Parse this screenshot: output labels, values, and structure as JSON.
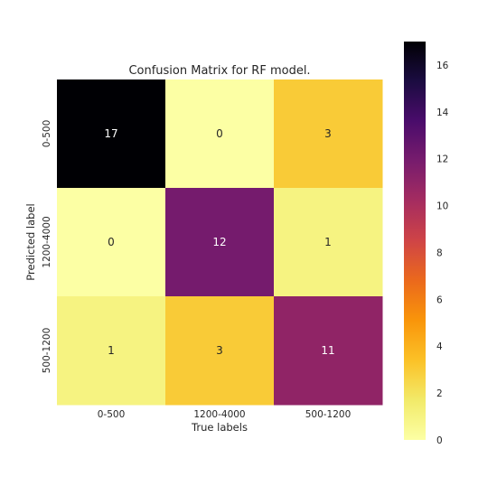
{
  "chart_data": {
    "type": "heatmap",
    "title": "Confusion Matrix for RF model.",
    "xlabel": "True labels",
    "ylabel": "Predicted label",
    "x_categories": [
      "0-500",
      "1200-4000",
      "500-1200"
    ],
    "y_categories": [
      "0-500",
      "1200-4000",
      "500-1200"
    ],
    "matrix": [
      [
        17,
        0,
        3
      ],
      [
        0,
        12,
        1
      ],
      [
        1,
        3,
        11
      ]
    ],
    "colormap": "inferno_r",
    "vmin": 0,
    "vmax": 17,
    "colorbar_ticks": [
      0,
      2,
      4,
      6,
      8,
      10,
      12,
      14,
      16
    ],
    "grid": false,
    "annotations": true
  }
}
